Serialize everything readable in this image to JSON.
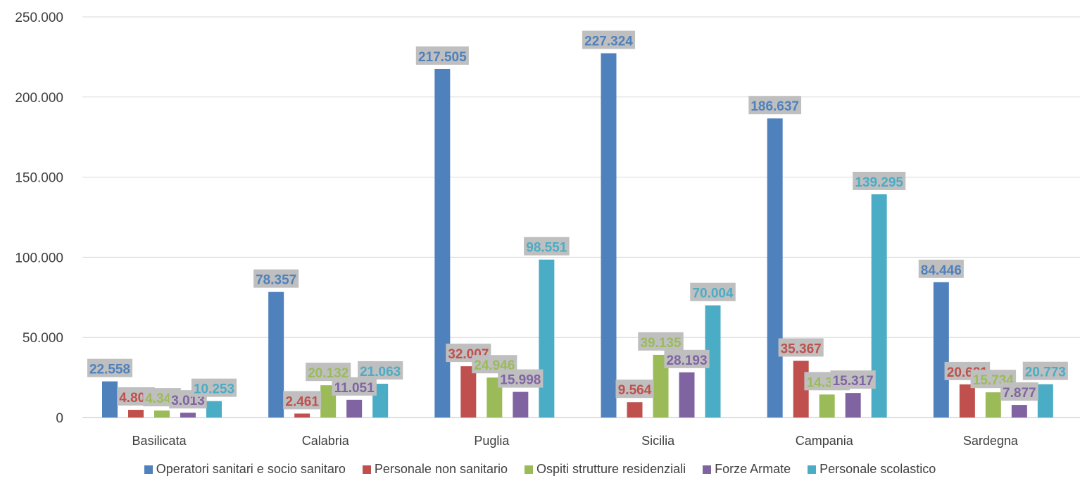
{
  "chart_data": {
    "type": "bar",
    "categories": [
      "Basilicata",
      "Calabria",
      "Puglia",
      "Sicilia",
      "Campania",
      "Sardegna"
    ],
    "series": [
      {
        "name": "Operatori sanitari e socio sanitaro",
        "color": "#4F81BD",
        "values": [
          22558,
          78357,
          217505,
          227324,
          186637,
          84446
        ],
        "labels": [
          "22.558",
          "78.357",
          "217.505",
          "227.324",
          "186.637",
          "84.446"
        ]
      },
      {
        "name": "Personale non sanitario",
        "color": "#C0504D",
        "values": [
          4807,
          2461,
          32007,
          9564,
          35367,
          20681
        ],
        "labels": [
          "4.807",
          "2.461",
          "32.007",
          "9.564",
          "35.367",
          "20.681"
        ]
      },
      {
        "name": "Ospiti strutture residenziali",
        "color": "#9BBB59",
        "values": [
          4348,
          20132,
          24946,
          39135,
          14355,
          15734
        ],
        "labels": [
          "4.348",
          "20.132",
          "24.946",
          "39.135",
          "14.355",
          "15.734"
        ]
      },
      {
        "name": "Forze Armate",
        "color": "#8064A2",
        "values": [
          3013,
          11051,
          15998,
          28193,
          15317,
          7877
        ],
        "labels": [
          "3.013",
          "11.051",
          "15.998",
          "28.193",
          "15.317",
          "7.877"
        ]
      },
      {
        "name": "Personale scolastico",
        "color": "#4BACC6",
        "values": [
          10253,
          21063,
          98551,
          70004,
          139295,
          20773
        ],
        "labels": [
          "10.253",
          "21.063",
          "98.551",
          "70.004",
          "139.295",
          "20.773"
        ]
      }
    ],
    "ylim": [
      0,
      250000
    ],
    "yticks": [
      0,
      50000,
      100000,
      150000,
      200000,
      250000
    ],
    "ytick_labels": [
      "0",
      "50.000",
      "100.000",
      "150.000",
      "200.000",
      "250.000"
    ],
    "grid": true,
    "legend_position": "bottom",
    "data_label_background": "#BFBFBF"
  }
}
